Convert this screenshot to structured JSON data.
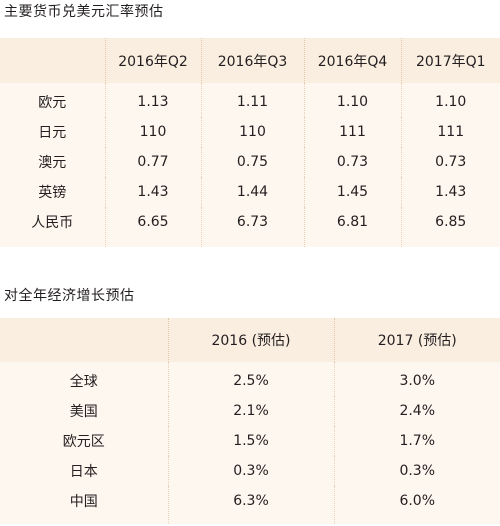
{
  "section1": {
    "title": "主要货币兑美元汇率预估",
    "columns": [
      "",
      "2016年Q2",
      "2016年Q3",
      "2016年Q4",
      "2017年Q1"
    ],
    "rows": [
      {
        "label": "欧元",
        "values": [
          "1.13",
          "1.11",
          "1.10",
          "1.10"
        ]
      },
      {
        "label": "日元",
        "values": [
          "110",
          "110",
          "111",
          "111"
        ]
      },
      {
        "label": "澳元",
        "values": [
          "0.77",
          "0.75",
          "0.73",
          "0.73"
        ]
      },
      {
        "label": "英镑",
        "values": [
          "1.43",
          "1.44",
          "1.45",
          "1.43"
        ]
      },
      {
        "label": "人民币",
        "values": [
          "6.65",
          "6.73",
          "6.81",
          "6.85"
        ]
      }
    ]
  },
  "section2": {
    "title": "对全年经济增长预估",
    "columns": [
      "",
      "2016 (预估)",
      "2017 (预估)"
    ],
    "rows": [
      {
        "label": "全球",
        "values": [
          "2.5%",
          "3.0%"
        ]
      },
      {
        "label": "美国",
        "values": [
          "2.1%",
          "2.4%"
        ]
      },
      {
        "label": "欧元区",
        "values": [
          "1.5%",
          "1.7%"
        ]
      },
      {
        "label": "日本",
        "values": [
          "0.3%",
          "0.3%"
        ]
      },
      {
        "label": "中国",
        "values": [
          "6.3%",
          "6.0%"
        ]
      }
    ]
  },
  "colors": {
    "header_bg": "#faeee0",
    "body_bg": "#fdf7ef",
    "text": "#231f20",
    "separator": "#e0c9a6"
  }
}
